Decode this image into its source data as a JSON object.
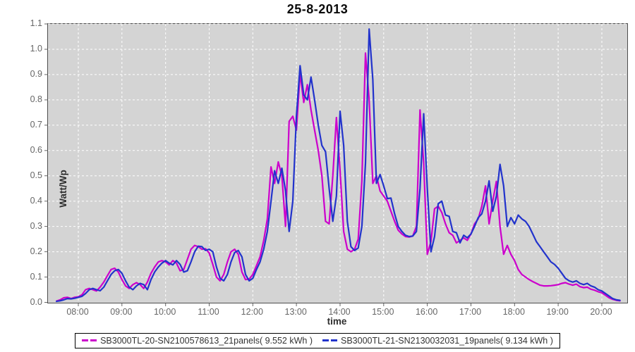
{
  "chart_data": {
    "type": "line",
    "title": "25-8-2013",
    "xlabel": "time",
    "ylabel": "Watt/Wp",
    "plot_background": "#d4d4d4",
    "grid": {
      "style": "dashed",
      "color": "#ffffff"
    },
    "legend_position": "bottom",
    "x_axis": {
      "tick_labels": [
        "08:00",
        "09:00",
        "10:00",
        "11:00",
        "12:00",
        "13:00",
        "14:00",
        "15:00",
        "16:00",
        "17:00",
        "18:00",
        "19:00",
        "20:00"
      ],
      "tick_hours": [
        8,
        9,
        10,
        11,
        12,
        13,
        14,
        15,
        16,
        17,
        18,
        19,
        20
      ]
    },
    "y_axis": {
      "tick_labels": [
        "0.0",
        "0.1",
        "0.2",
        "0.3",
        "0.4",
        "0.5",
        "0.6",
        "0.7",
        "0.8",
        "0.9",
        "1.0",
        "1.1"
      ],
      "tick_values": [
        0.0,
        0.1,
        0.2,
        0.3,
        0.4,
        0.5,
        0.6,
        0.7,
        0.8,
        0.9,
        1.0,
        1.1
      ],
      "min": 0.0,
      "max": 1.1
    },
    "x_start_hour": 7.5,
    "x_step_minutes": 5,
    "series": [
      {
        "name": "SB3000TL-20-SN2100578613_21panels( 9.552 kWh )",
        "color": "#cc00cc",
        "values": [
          0.005,
          0.01,
          0.018,
          0.02,
          0.015,
          0.02,
          0.022,
          0.03,
          0.05,
          0.055,
          0.05,
          0.045,
          0.06,
          0.08,
          0.105,
          0.13,
          0.135,
          0.12,
          0.09,
          0.065,
          0.055,
          0.07,
          0.078,
          0.07,
          0.055,
          0.08,
          0.115,
          0.14,
          0.16,
          0.165,
          0.16,
          0.148,
          0.165,
          0.155,
          0.125,
          0.13,
          0.17,
          0.21,
          0.225,
          0.22,
          0.21,
          0.212,
          0.195,
          0.15,
          0.1,
          0.085,
          0.11,
          0.16,
          0.2,
          0.21,
          0.19,
          0.12,
          0.09,
          0.092,
          0.11,
          0.145,
          0.18,
          0.245,
          0.33,
          0.535,
          0.47,
          0.555,
          0.5,
          0.3,
          0.715,
          0.735,
          0.68,
          0.905,
          0.79,
          0.86,
          0.76,
          0.68,
          0.6,
          0.5,
          0.32,
          0.31,
          0.5,
          0.73,
          0.52,
          0.28,
          0.21,
          0.2,
          0.21,
          0.25,
          0.48,
          0.985,
          0.8,
          0.47,
          0.5,
          0.44,
          0.42,
          0.4,
          0.36,
          0.32,
          0.285,
          0.27,
          0.26,
          0.258,
          0.262,
          0.3,
          0.76,
          0.55,
          0.19,
          0.24,
          0.37,
          0.38,
          0.355,
          0.31,
          0.275,
          0.265,
          0.235,
          0.245,
          0.255,
          0.245,
          0.27,
          0.31,
          0.33,
          0.38,
          0.46,
          0.31,
          0.4,
          0.478,
          0.3,
          0.19,
          0.225,
          0.19,
          0.165,
          0.13,
          0.11,
          0.1,
          0.09,
          0.082,
          0.075,
          0.068,
          0.065,
          0.065,
          0.066,
          0.068,
          0.07,
          0.075,
          0.078,
          0.072,
          0.068,
          0.072,
          0.062,
          0.058,
          0.06,
          0.052,
          0.048,
          0.042,
          0.038,
          0.028,
          0.018,
          0.012,
          0.008,
          0.006
        ]
      },
      {
        "name": "SB3000TL-21-SN2130032031_19panels( 9.134 kWh )",
        "color": "#2233cc",
        "values": [
          0.004,
          0.006,
          0.01,
          0.015,
          0.014,
          0.016,
          0.02,
          0.024,
          0.035,
          0.05,
          0.055,
          0.05,
          0.046,
          0.06,
          0.085,
          0.11,
          0.125,
          0.13,
          0.115,
          0.085,
          0.06,
          0.05,
          0.065,
          0.075,
          0.07,
          0.05,
          0.09,
          0.12,
          0.14,
          0.155,
          0.165,
          0.155,
          0.148,
          0.165,
          0.15,
          0.12,
          0.125,
          0.16,
          0.2,
          0.222,
          0.22,
          0.205,
          0.21,
          0.2,
          0.14,
          0.095,
          0.085,
          0.11,
          0.16,
          0.197,
          0.205,
          0.18,
          0.11,
          0.085,
          0.095,
          0.13,
          0.16,
          0.21,
          0.28,
          0.4,
          0.52,
          0.47,
          0.53,
          0.44,
          0.28,
          0.4,
          0.735,
          0.935,
          0.82,
          0.8,
          0.89,
          0.8,
          0.7,
          0.62,
          0.595,
          0.45,
          0.32,
          0.42,
          0.755,
          0.62,
          0.32,
          0.22,
          0.205,
          0.215,
          0.3,
          0.55,
          1.08,
          0.88,
          0.47,
          0.505,
          0.46,
          0.41,
          0.412,
          0.35,
          0.3,
          0.28,
          0.265,
          0.26,
          0.262,
          0.28,
          0.45,
          0.745,
          0.45,
          0.2,
          0.26,
          0.39,
          0.4,
          0.345,
          0.34,
          0.28,
          0.275,
          0.235,
          0.265,
          0.255,
          0.27,
          0.3,
          0.335,
          0.35,
          0.4,
          0.48,
          0.36,
          0.42,
          0.545,
          0.46,
          0.3,
          0.335,
          0.31,
          0.345,
          0.33,
          0.32,
          0.3,
          0.27,
          0.24,
          0.22,
          0.2,
          0.18,
          0.16,
          0.15,
          0.135,
          0.115,
          0.095,
          0.085,
          0.08,
          0.085,
          0.075,
          0.07,
          0.075,
          0.065,
          0.06,
          0.05,
          0.045,
          0.035,
          0.025,
          0.015,
          0.01,
          0.008
        ]
      }
    ]
  }
}
